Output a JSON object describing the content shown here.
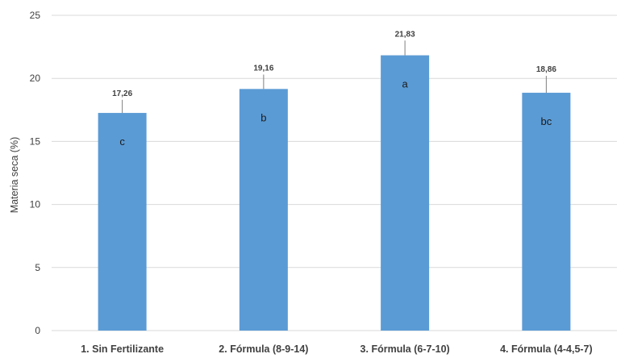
{
  "chart_data": {
    "type": "bar",
    "title": "",
    "xlabel": "",
    "ylabel": "Materia seca (%)",
    "ylim": [
      0,
      25
    ],
    "yticks": [
      0,
      5,
      10,
      15,
      20,
      25
    ],
    "grid": true,
    "legend": "none",
    "categories": [
      "1. Sin Fertilizante",
      "2. Fórmula (8-9-14)",
      "3. Fórmula (6-7-10)",
      "4. Fórmula (4-4,5-7)"
    ],
    "values": [
      17.26,
      19.16,
      21.83,
      18.86
    ],
    "value_labels": [
      "17,26",
      "19,16",
      "21,83",
      "18,86"
    ],
    "error_upper": [
      18.3,
      20.3,
      23.0,
      20.2
    ],
    "group_letters": [
      "c",
      "b",
      "a",
      "bc"
    ],
    "bar_color": "#5b9bd5",
    "grid_color": "#d9d9d9"
  }
}
